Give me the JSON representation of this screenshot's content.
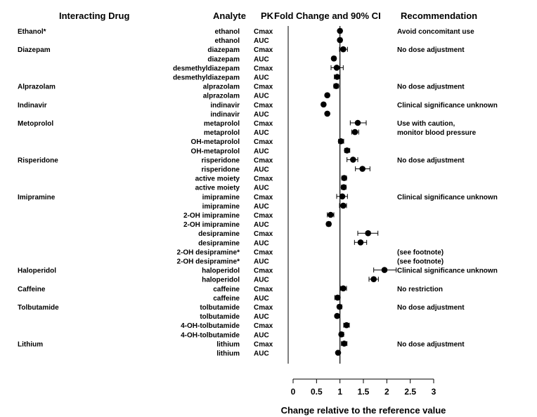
{
  "chart_data": {
    "type": "forest",
    "headers": {
      "drug": "Interacting Drug",
      "analyte": "Analyte",
      "pk": "PK",
      "change": "Fold Change and 90% CI",
      "recommendation": "Recommendation"
    },
    "xlabel": "Change relative to the reference value",
    "xlim": [
      0,
      3
    ],
    "xticks": [
      "0",
      "0.5",
      "1",
      "1.5",
      "2",
      "2.5",
      "3"
    ],
    "reference_value": 1,
    "rows": [
      {
        "drug": "Ethanol*",
        "analyte": "ethanol",
        "pk": "Cmax",
        "estimate": 1.0,
        "ci": [
          0.97,
          1.04
        ],
        "recommendation": "Avoid concomitant use"
      },
      {
        "drug": "",
        "analyte": "ethanol",
        "pk": "AUC",
        "estimate": 1.0,
        "ci": [
          0.97,
          1.04
        ],
        "recommendation": ""
      },
      {
        "drug": "Diazepam",
        "analyte": "diazepam",
        "pk": "Cmax",
        "estimate": 1.07,
        "ci": [
          0.99,
          1.16
        ],
        "recommendation": "No dose adjustment"
      },
      {
        "drug": "",
        "analyte": "diazepam",
        "pk": "AUC",
        "estimate": 0.87,
        "ci": [
          0.84,
          0.91
        ],
        "recommendation": ""
      },
      {
        "drug": "",
        "analyte": "desmethyldiazepam",
        "pk": "Cmax",
        "estimate": 0.93,
        "ci": [
          0.81,
          1.07
        ],
        "recommendation": ""
      },
      {
        "drug": "",
        "analyte": "desmethyldiazepam",
        "pk": "AUC",
        "estimate": 0.94,
        "ci": [
          0.88,
          1.0
        ],
        "recommendation": ""
      },
      {
        "drug": "Alprazolam",
        "analyte": "alprazolam",
        "pk": "Cmax",
        "estimate": 0.92,
        "ci": [
          0.87,
          0.97
        ],
        "recommendation": "No dose adjustment"
      },
      {
        "drug": "",
        "analyte": "alprazolam",
        "pk": "AUC",
        "estimate": 0.73,
        "ci": [
          0.7,
          0.76
        ],
        "recommendation": ""
      },
      {
        "drug": "Indinavir",
        "analyte": "indinavir",
        "pk": "Cmax",
        "estimate": 0.65,
        "ci": [
          0.62,
          0.68
        ],
        "recommendation": "Clinical significance unknown"
      },
      {
        "drug": "",
        "analyte": "indinavir",
        "pk": "AUC",
        "estimate": 0.73,
        "ci": [
          0.7,
          0.76
        ],
        "recommendation": ""
      },
      {
        "drug": "Metoprolol",
        "analyte": "metaprolol",
        "pk": "Cmax",
        "estimate": 1.38,
        "ci": [
          1.22,
          1.56
        ],
        "recommendation": "Use with caution,"
      },
      {
        "drug": "",
        "analyte": "metaprolol",
        "pk": "AUC",
        "estimate": 1.32,
        "ci": [
          1.25,
          1.4
        ],
        "recommendation": "monitor blood pressure"
      },
      {
        "drug": "",
        "analyte": "OH-metaprolol",
        "pk": "Cmax",
        "estimate": 1.02,
        "ci": [
          0.97,
          1.08
        ],
        "recommendation": ""
      },
      {
        "drug": "",
        "analyte": "OH-metaprolol",
        "pk": "AUC",
        "estimate": 1.15,
        "ci": [
          1.1,
          1.21
        ],
        "recommendation": ""
      },
      {
        "drug": "Risperidone",
        "analyte": "risperidone",
        "pk": "Cmax",
        "estimate": 1.28,
        "ci": [
          1.15,
          1.38
        ],
        "recommendation": "No dose adjustment"
      },
      {
        "drug": "",
        "analyte": "risperidone",
        "pk": "AUC",
        "estimate": 1.48,
        "ci": [
          1.33,
          1.64
        ],
        "recommendation": ""
      },
      {
        "drug": "",
        "analyte": "active moiety",
        "pk": "Cmax",
        "estimate": 1.09,
        "ci": [
          1.04,
          1.14
        ],
        "recommendation": ""
      },
      {
        "drug": "",
        "analyte": "active moiety",
        "pk": "AUC",
        "estimate": 1.08,
        "ci": [
          1.03,
          1.13
        ],
        "recommendation": ""
      },
      {
        "drug": "Imipramine",
        "analyte": "imipramine",
        "pk": "Cmax",
        "estimate": 1.05,
        "ci": [
          0.93,
          1.16
        ],
        "recommendation": "Clinical significance unknown"
      },
      {
        "drug": "",
        "analyte": "imipramine",
        "pk": "AUC",
        "estimate": 1.07,
        "ci": [
          0.99,
          1.14
        ],
        "recommendation": ""
      },
      {
        "drug": "",
        "analyte": "2-OH imipramine",
        "pk": "Cmax",
        "estimate": 0.8,
        "ci": [
          0.73,
          0.87
        ],
        "recommendation": ""
      },
      {
        "drug": "",
        "analyte": "2-OH imipramine",
        "pk": "AUC",
        "estimate": 0.76,
        "ci": [
          0.72,
          0.8
        ],
        "recommendation": ""
      },
      {
        "drug": "",
        "analyte": "desipramine",
        "pk": "Cmax",
        "estimate": 1.6,
        "ci": [
          1.38,
          1.81
        ],
        "recommendation": ""
      },
      {
        "drug": "",
        "analyte": "desipramine",
        "pk": "AUC",
        "estimate": 1.44,
        "ci": [
          1.31,
          1.57
        ],
        "recommendation": ""
      },
      {
        "drug": "",
        "analyte": "2-OH desipramine*",
        "pk": "Cmax",
        "estimate": null,
        "ci": null,
        "recommendation": "(see footnote)"
      },
      {
        "drug": "",
        "analyte": "2-OH desipramine*",
        "pk": "AUC",
        "estimate": null,
        "ci": null,
        "recommendation": "(see footnote)"
      },
      {
        "drug": "Haloperidol",
        "analyte": "haloperidol",
        "pk": "Cmax",
        "estimate": 1.95,
        "ci": [
          1.72,
          2.2
        ],
        "recommendation": "Clinical significance unknown"
      },
      {
        "drug": "",
        "analyte": "haloperidol",
        "pk": "AUC",
        "estimate": 1.72,
        "ci": [
          1.62,
          1.82
        ],
        "recommendation": ""
      },
      {
        "drug": "Caffeine",
        "analyte": "caffeine",
        "pk": "Cmax",
        "estimate": 1.07,
        "ci": [
          1.01,
          1.14
        ],
        "recommendation": "No restriction"
      },
      {
        "drug": "",
        "analyte": "caffeine",
        "pk": "AUC",
        "estimate": 0.95,
        "ci": [
          0.89,
          1.0
        ],
        "recommendation": ""
      },
      {
        "drug": "Tolbutamide",
        "analyte": "tolbutamide",
        "pk": "Cmax",
        "estimate": 0.99,
        "ci": [
          0.95,
          1.04
        ],
        "recommendation": "No dose adjustment"
      },
      {
        "drug": "",
        "analyte": "tolbutamide",
        "pk": "AUC",
        "estimate": 0.94,
        "ci": [
          0.91,
          0.97
        ],
        "recommendation": ""
      },
      {
        "drug": "",
        "analyte": "4-OH-tolbutamide",
        "pk": "Cmax",
        "estimate": 1.14,
        "ci": [
          1.08,
          1.2
        ],
        "recommendation": ""
      },
      {
        "drug": "",
        "analyte": "4-OH-tolbutamide",
        "pk": "AUC",
        "estimate": 1.03,
        "ci": [
          0.99,
          1.08
        ],
        "recommendation": ""
      },
      {
        "drug": "Lithium",
        "analyte": "lithium",
        "pk": "Cmax",
        "estimate": 1.09,
        "ci": [
          1.03,
          1.15
        ],
        "recommendation": "No dose adjustment"
      },
      {
        "drug": "",
        "analyte": "lithium",
        "pk": "AUC",
        "estimate": 0.96,
        "ci": [
          0.93,
          0.99
        ],
        "recommendation": ""
      }
    ]
  }
}
